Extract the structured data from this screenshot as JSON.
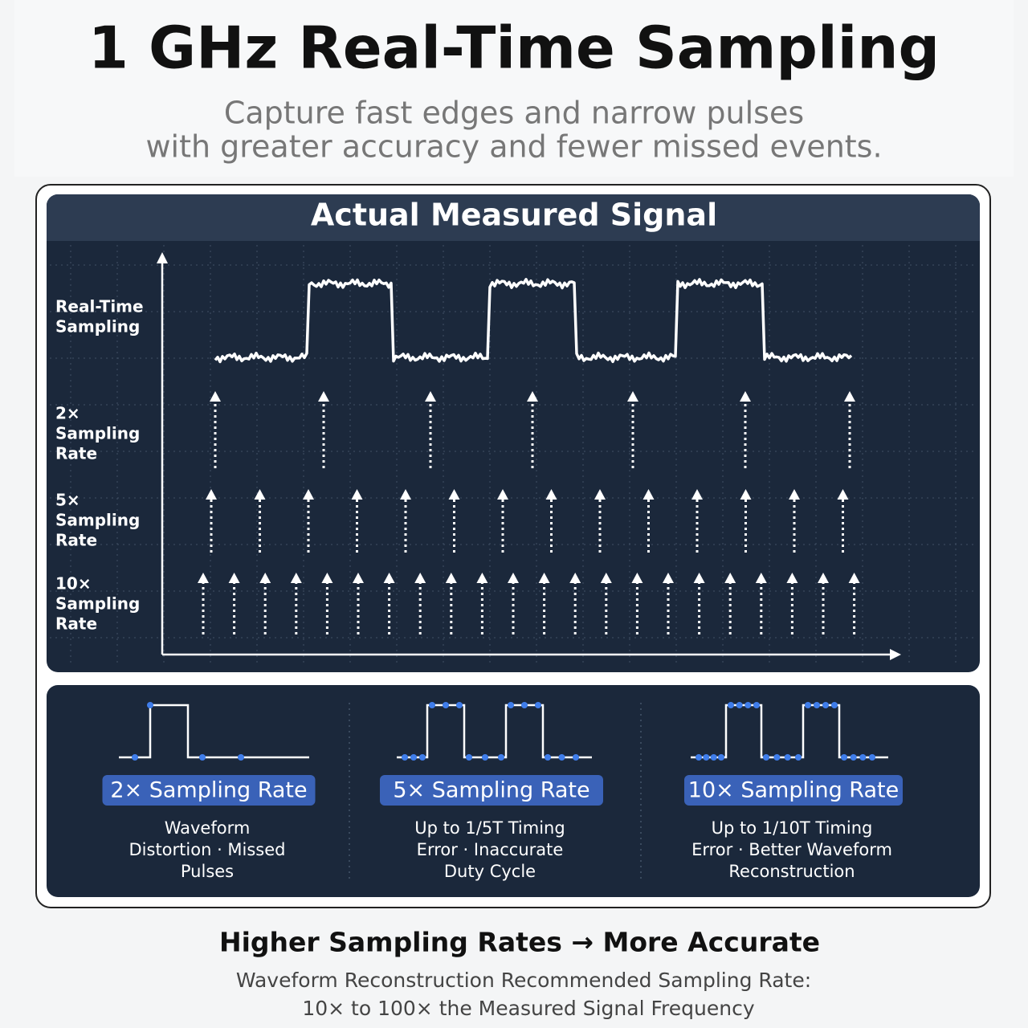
{
  "header": {
    "title": "1 GHz Real-Time Sampling",
    "subtitle": [
      "Capture fast edges and narrow pulses",
      "with greater accuracy and fewer missed events."
    ]
  },
  "panel": {
    "title": "Actual Measured Signal",
    "rows": [
      [
        "Real-Time",
        "Sampling"
      ],
      [
        "2×",
        "Sampling",
        "Rate"
      ],
      [
        "5×",
        "Sampling",
        "Rate"
      ],
      [
        "10×",
        "Sampling",
        "Rate"
      ]
    ]
  },
  "cards": [
    {
      "badge": "2× Sampling Rate",
      "text": [
        "Waveform",
        "Distortion · Missed",
        "Pulses"
      ]
    },
    {
      "badge": "5× Sampling Rate",
      "text": [
        "Up to 1/5T Timing",
        "Error · Inaccurate",
        "Duty Cycle"
      ]
    },
    {
      "badge": "10× Sampling Rate",
      "text": [
        "Up to 1/10T Timing",
        "Error · Better Waveform",
        "Reconstruction"
      ]
    }
  ],
  "footer": {
    "title": "Higher Sampling Rates → More Accurate",
    "text": [
      "Waveform Reconstruction Recommended Sampling Rate:",
      "10× to 100× the Measured Signal Frequency"
    ]
  }
}
